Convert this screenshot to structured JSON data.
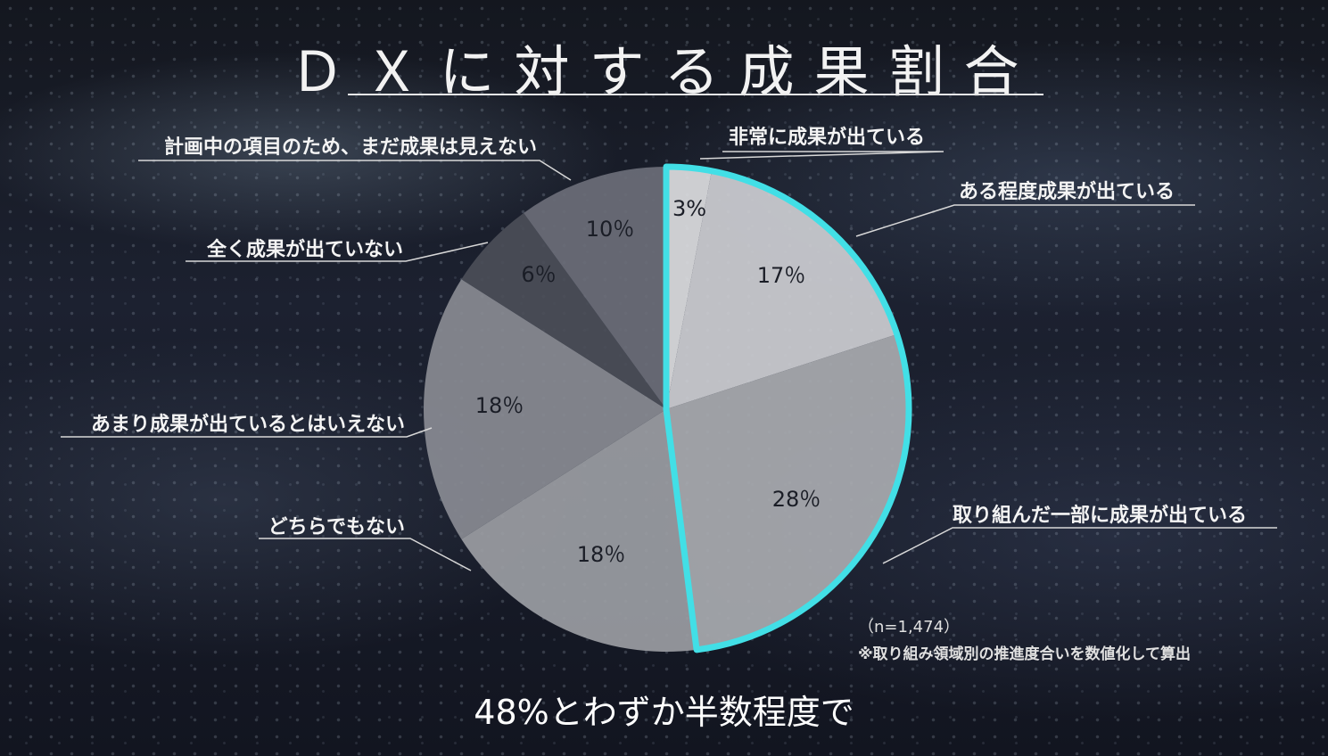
{
  "title": "ＤＸに対する成果割合",
  "subtitle": "48%とわずか半数程度で",
  "note_n": "（n=1,474）",
  "note_method": "※取り組み領域別の推進度合いを数値化して算出",
  "colors": {
    "highlight": "#42dfe6",
    "slices": [
      "#dcdde0",
      "#cdced2",
      "#a9abb0",
      "#9b9da3",
      "#898b93",
      "#4b4e58",
      "#6b6e78"
    ]
  },
  "chart_data": {
    "type": "pie",
    "title": "ＤＸに対する成果割合",
    "categories": [
      "非常に成果が出ている",
      "ある程度成果が出ている",
      "取り組んだ一部に成果が出ている",
      "どちらでもない",
      "あまり成果が出ているとはいえない",
      "全く成果が出ていない",
      "計画中の項目のため、まだ成果は見えない"
    ],
    "values": [
      3,
      17,
      28,
      18,
      18,
      6,
      10
    ],
    "value_labels": [
      "3%",
      "17％",
      "28％",
      "18％",
      "18％",
      "6％",
      "10％"
    ],
    "highlighted_total": 48,
    "highlighted_categories": [
      "非常に成果が出ている",
      "ある程度成果が出ている",
      "取り組んだ一部に成果が出ている"
    ]
  }
}
